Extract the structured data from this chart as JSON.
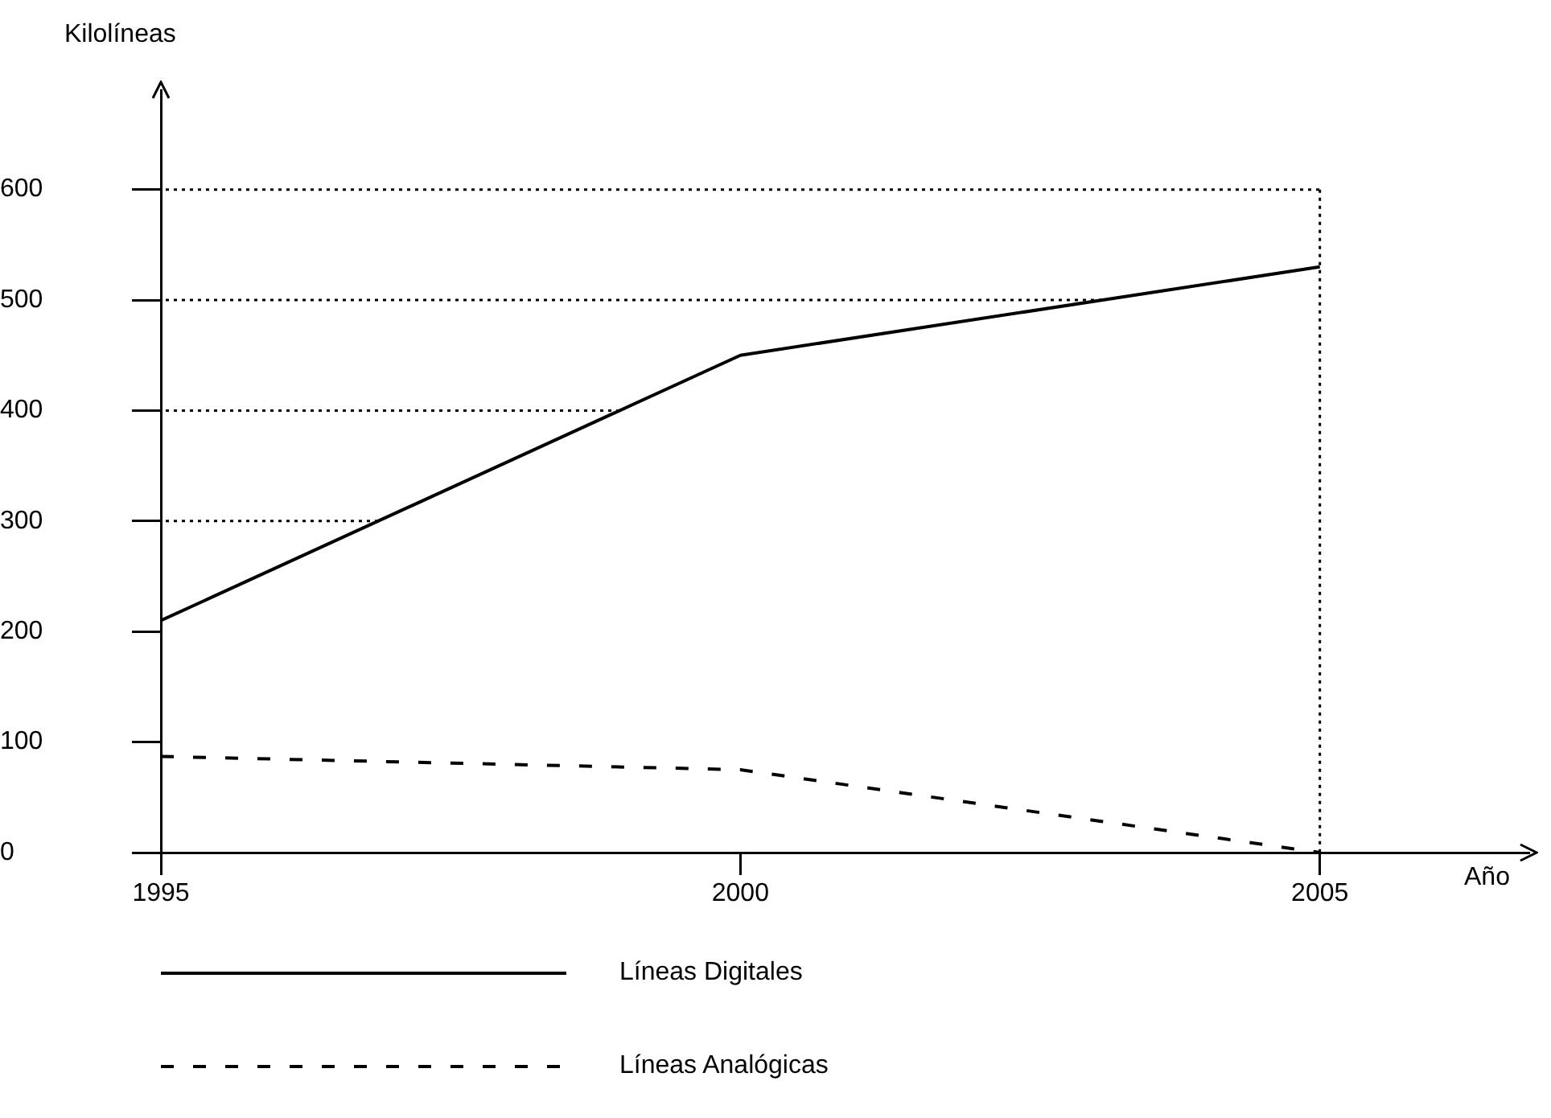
{
  "chart_data": {
    "type": "line",
    "ylabel": "Kilolíneas",
    "xlabel": "Año",
    "x": [
      1995,
      2000,
      2005
    ],
    "series": [
      {
        "name": "Líneas Digitales",
        "color": "#000000",
        "line_style": "solid",
        "values": [
          210,
          450,
          530
        ]
      },
      {
        "name": "Líneas Analógicas",
        "color": "#000000",
        "line_style": "dashed",
        "values": [
          87,
          75,
          0
        ]
      }
    ],
    "xlim": [
      1995,
      2006.8
    ],
    "xticks": [
      1995,
      2000,
      2005
    ],
    "ylim": [
      0,
      690
    ],
    "yticks": [
      0,
      100,
      200,
      300,
      400,
      500,
      600
    ],
    "ref_lines": [
      {
        "axis": "y",
        "value": 300,
        "line_style": "dotted"
      },
      {
        "axis": "y",
        "value": 400,
        "line_style": "dotted"
      },
      {
        "axis": "y",
        "value": 500,
        "line_style": "dotted"
      },
      {
        "axis": "y",
        "value": 600,
        "line_style": "dotted"
      },
      {
        "axis": "x",
        "value": 2005,
        "line_style": "dotted"
      }
    ],
    "legend": "bottom",
    "marker": "none"
  }
}
